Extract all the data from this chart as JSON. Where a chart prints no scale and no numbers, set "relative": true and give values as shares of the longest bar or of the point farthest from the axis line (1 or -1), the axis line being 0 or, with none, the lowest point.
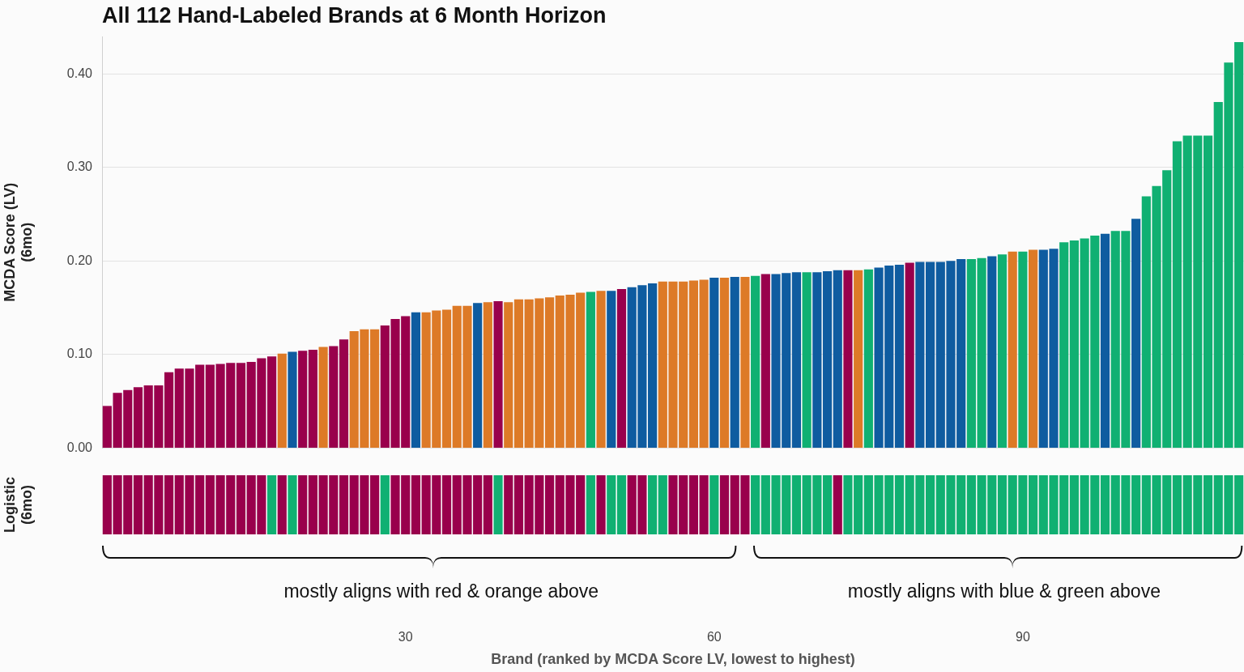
{
  "chart_data": [
    {
      "type": "bar",
      "title": "All 112 Hand-Labeled Brands at 6 Month Horizon",
      "ylabel": "MCDA Score (LV)\n(6mo)",
      "categories": [
        null,
        null,
        null,
        null,
        null,
        null,
        null,
        null,
        null,
        null,
        null,
        null,
        null,
        null,
        null,
        null,
        null,
        null,
        null,
        null,
        null,
        null,
        null,
        null,
        null,
        null,
        null,
        null,
        null,
        "30",
        null,
        null,
        null,
        null,
        null,
        null,
        null,
        null,
        null,
        null,
        null,
        null,
        null,
        null,
        null,
        null,
        null,
        null,
        null,
        null,
        null,
        null,
        null,
        null,
        null,
        null,
        null,
        null,
        null,
        "60",
        null,
        null,
        null,
        null,
        null,
        null,
        null,
        null,
        null,
        null,
        null,
        null,
        null,
        null,
        null,
        null,
        null,
        null,
        null,
        null,
        null,
        null,
        null,
        null,
        null,
        null,
        null,
        null,
        null,
        "90",
        null,
        null,
        null,
        null,
        null,
        null,
        null,
        null,
        null,
        null,
        null,
        null,
        null,
        null,
        null,
        null,
        null,
        null,
        null,
        null,
        null
      ],
      "values": [
        0.045,
        0.059,
        0.062,
        0.065,
        0.067,
        0.067,
        0.081,
        0.085,
        0.085,
        0.089,
        0.089,
        0.09,
        0.091,
        0.091,
        0.092,
        0.096,
        0.098,
        0.101,
        0.103,
        0.104,
        0.105,
        0.108,
        0.109,
        0.116,
        0.125,
        0.127,
        0.127,
        0.131,
        0.138,
        0.141,
        0.145,
        0.145,
        0.147,
        0.148,
        0.152,
        0.152,
        0.155,
        0.156,
        0.157,
        0.156,
        0.159,
        0.159,
        0.16,
        0.161,
        0.163,
        0.164,
        0.166,
        0.167,
        0.168,
        0.168,
        0.17,
        0.172,
        0.174,
        0.176,
        0.178,
        0.178,
        0.178,
        0.179,
        0.18,
        0.182,
        0.182,
        0.183,
        0.183,
        0.184,
        0.186,
        0.186,
        0.187,
        0.188,
        0.188,
        0.188,
        0.189,
        0.19,
        0.19,
        0.19,
        0.191,
        0.193,
        0.195,
        0.196,
        0.198,
        0.199,
        0.199,
        0.199,
        0.2,
        0.202,
        0.202,
        0.203,
        0.205,
        0.207,
        0.21,
        0.21,
        0.212,
        0.212,
        0.213,
        0.22,
        0.222,
        0.224,
        0.227,
        0.229,
        0.232,
        0.232,
        0.245,
        0.269,
        0.28,
        0.297,
        0.328,
        0.334,
        0.334,
        0.334,
        0.37,
        0.412,
        0.434
      ],
      "colors": [
        "#99004c",
        "#99004c",
        "#99004c",
        "#99004c",
        "#99004c",
        "#99004c",
        "#99004c",
        "#99004c",
        "#99004c",
        "#99004c",
        "#99004c",
        "#99004c",
        "#99004c",
        "#99004c",
        "#99004c",
        "#99004c",
        "#99004c",
        "#dd7a27",
        "#0f5ca0",
        "#99004c",
        "#99004c",
        "#dd7a27",
        "#99004c",
        "#99004c",
        "#dd7a27",
        "#dd7a27",
        "#dd7a27",
        "#99004c",
        "#99004c",
        "#99004c",
        "#0f5ca0",
        "#dd7a27",
        "#dd7a27",
        "#dd7a27",
        "#dd7a27",
        "#dd7a27",
        "#0f5ca0",
        "#dd7a27",
        "#99004c",
        "#dd7a27",
        "#dd7a27",
        "#dd7a27",
        "#dd7a27",
        "#dd7a27",
        "#dd7a27",
        "#dd7a27",
        "#dd7a27",
        "#10b072",
        "#dd7a27",
        "#0f5ca0",
        "#99004c",
        "#0f5ca0",
        "#0f5ca0",
        "#0f5ca0",
        "#dd7a27",
        "#dd7a27",
        "#dd7a27",
        "#dd7a27",
        "#dd7a27",
        "#0f5ca0",
        "#dd7a27",
        "#0f5ca0",
        "#dd7a27",
        "#10b072",
        "#99004c",
        "#0f5ca0",
        "#0f5ca0",
        "#0f5ca0",
        "#10b072",
        "#0f5ca0",
        "#0f5ca0",
        "#0f5ca0",
        "#99004c",
        "#dd7a27",
        "#10b072",
        "#0f5ca0",
        "#0f5ca0",
        "#0f5ca0",
        "#99004c",
        "#0f5ca0",
        "#0f5ca0",
        "#0f5ca0",
        "#0f5ca0",
        "#0f5ca0",
        "#10b072",
        "#10b072",
        "#0f5ca0",
        "#10b072",
        "#dd7a27",
        "#10b072",
        "#dd7a27",
        "#0f5ca0",
        "#0f5ca0",
        "#10b072",
        "#10b072",
        "#10b072",
        "#10b072",
        "#0f5ca0",
        "#10b072",
        "#10b072",
        "#0f5ca0",
        "#10b072",
        "#10b072",
        "#10b072",
        "#10b072",
        "#10b072",
        "#10b072",
        "#10b072",
        "#10b072",
        "#10b072",
        "#10b072"
      ],
      "ylim": [
        0,
        0.44
      ],
      "yticks": [
        {
          "value": 0,
          "label": "0.00"
        },
        {
          "value": 0.1,
          "label": "0.10"
        },
        {
          "value": 0.2,
          "label": "0.20"
        },
        {
          "value": 0.3,
          "label": "0.30"
        },
        {
          "value": 0.4,
          "label": "0.40"
        }
      ],
      "grid": "y",
      "tick_labels": "y"
    },
    {
      "type": "bar",
      "relative": true,
      "ylabel": "Logistic\n(6mo)",
      "xlabel": "Brand (ranked by MCDA Score LV, lowest to highest)",
      "categories": [
        null,
        null,
        null,
        null,
        null,
        null,
        null,
        null,
        null,
        null,
        null,
        null,
        null,
        null,
        null,
        null,
        null,
        null,
        null,
        null,
        null,
        null,
        null,
        null,
        null,
        null,
        null,
        null,
        null,
        "30",
        null,
        null,
        null,
        null,
        null,
        null,
        null,
        null,
        null,
        null,
        null,
        null,
        null,
        null,
        null,
        null,
        null,
        null,
        null,
        null,
        null,
        null,
        null,
        null,
        null,
        null,
        null,
        null,
        null,
        "60",
        null,
        null,
        null,
        null,
        null,
        null,
        null,
        null,
        null,
        null,
        null,
        null,
        null,
        null,
        null,
        null,
        null,
        null,
        null,
        null,
        null,
        null,
        null,
        null,
        null,
        null,
        null,
        null,
        null,
        "90",
        null,
        null,
        null,
        null,
        null,
        null,
        null,
        null,
        null,
        null,
        null,
        null,
        null,
        null,
        null,
        null,
        null,
        null,
        null,
        null,
        null
      ],
      "values": [
        1,
        1,
        1,
        1,
        1,
        1,
        1,
        1,
        1,
        1,
        1,
        1,
        1,
        1,
        1,
        1,
        1,
        1,
        1,
        1,
        1,
        1,
        1,
        1,
        1,
        1,
        1,
        1,
        1,
        1,
        1,
        1,
        1,
        1,
        1,
        1,
        1,
        1,
        1,
        1,
        1,
        1,
        1,
        1,
        1,
        1,
        1,
        1,
        1,
        1,
        1,
        1,
        1,
        1,
        1,
        1,
        1,
        1,
        1,
        1,
        1,
        1,
        1,
        1,
        1,
        1,
        1,
        1,
        1,
        1,
        1,
        1,
        1,
        1,
        1,
        1,
        1,
        1,
        1,
        1,
        1,
        1,
        1,
        1,
        1,
        1,
        1,
        1,
        1,
        1,
        1,
        1,
        1,
        1,
        1,
        1,
        1,
        1,
        1,
        1,
        1,
        1,
        1,
        1,
        1,
        1,
        1,
        1,
        1,
        1,
        1
      ],
      "colors": [
        "#99004c",
        "#99004c",
        "#99004c",
        "#99004c",
        "#99004c",
        "#99004c",
        "#99004c",
        "#99004c",
        "#99004c",
        "#99004c",
        "#99004c",
        "#99004c",
        "#99004c",
        "#99004c",
        "#99004c",
        "#99004c",
        "#10b072",
        "#99004c",
        "#10b072",
        "#99004c",
        "#99004c",
        "#99004c",
        "#99004c",
        "#99004c",
        "#99004c",
        "#99004c",
        "#99004c",
        "#10b072",
        "#99004c",
        "#99004c",
        "#99004c",
        "#99004c",
        "#99004c",
        "#99004c",
        "#99004c",
        "#99004c",
        "#99004c",
        "#99004c",
        "#10b072",
        "#99004c",
        "#99004c",
        "#99004c",
        "#99004c",
        "#99004c",
        "#99004c",
        "#99004c",
        "#99004c",
        "#10b072",
        "#99004c",
        "#10b072",
        "#10b072",
        "#99004c",
        "#99004c",
        "#10b072",
        "#10b072",
        "#99004c",
        "#99004c",
        "#99004c",
        "#99004c",
        "#10b072",
        "#99004c",
        "#99004c",
        "#99004c",
        "#10b072",
        "#10b072",
        "#10b072",
        "#10b072",
        "#10b072",
        "#10b072",
        "#10b072",
        "#10b072",
        "#99004c",
        "#10b072",
        "#10b072",
        "#10b072",
        "#10b072",
        "#10b072",
        "#10b072",
        "#10b072",
        "#10b072",
        "#10b072",
        "#10b072",
        "#10b072",
        "#10b072",
        "#10b072",
        "#10b072",
        "#10b072",
        "#10b072",
        "#10b072",
        "#10b072",
        "#10b072",
        "#10b072",
        "#10b072",
        "#10b072",
        "#10b072",
        "#10b072",
        "#10b072",
        "#10b072",
        "#10b072",
        "#10b072",
        "#10b072",
        "#10b072",
        "#10b072",
        "#10b072",
        "#10b072",
        "#10b072",
        "#10b072",
        "#10b072",
        "#10b072",
        "#10b072",
        "#10b072"
      ],
      "tick_labels": "x",
      "annotations": [
        "mostly aligns with red & orange above",
        "mostly aligns with blue & green above"
      ]
    }
  ]
}
